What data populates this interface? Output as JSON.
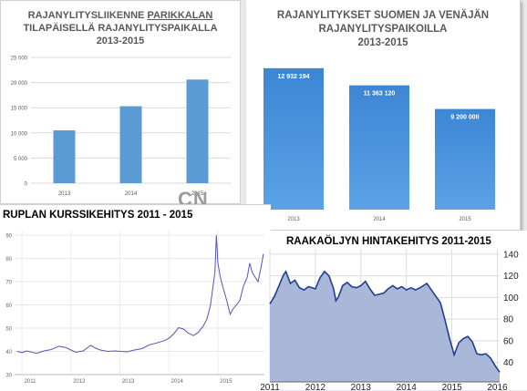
{
  "chart_data": [
    {
      "type": "bar",
      "title_line1": "RAJANYLITYSLIIKENNE",
      "title_line1_underlined": "PARIKKALAN",
      "title_line2": "TILAPÄISELLÄ RAJANYLITYSPAIKALLA",
      "title_line3": "2013-2015",
      "categories": [
        "2013",
        "2014",
        "2015"
      ],
      "values": [
        10500,
        15300,
        20600
      ],
      "yticks": [
        "0",
        "5 000",
        "10 000",
        "15 000",
        "20 000",
        "25 000"
      ],
      "ylim": [
        0,
        25000
      ],
      "bar_color": "#5b9bd5",
      "grid": true
    },
    {
      "type": "bar",
      "title_line1": "RAJANYLITYKSET SUOMEN JA VENÄJÄN",
      "title_line2": "RAJANYLITYSPAIKOILLA",
      "title_line3": "2013-2015",
      "categories": [
        "2013",
        "2014",
        "2015"
      ],
      "values": [
        12932194,
        11363120,
        9200000
      ],
      "value_labels": [
        "12 932 194",
        "11 363 120",
        "9 200 000"
      ],
      "ylim": [
        0,
        14000000
      ],
      "bar_color": "#4a8fd6",
      "grid": false
    },
    {
      "type": "line",
      "title": "RUPLAN KURSSIKEHITYS 2011 - 2015",
      "x_labels": [
        "2011",
        "2012",
        "2013",
        "2014",
        "2015"
      ],
      "yticks": [
        "30",
        "40",
        "50",
        "60",
        "70",
        "80",
        "90"
      ],
      "ylim": [
        30,
        92
      ],
      "xlim": [
        2010.85,
        2015.95
      ],
      "points": [
        [
          2010.9,
          40
        ],
        [
          2011.0,
          39.5
        ],
        [
          2011.1,
          40.2
        ],
        [
          2011.2,
          39.6
        ],
        [
          2011.3,
          39.2
        ],
        [
          2011.45,
          40.2
        ],
        [
          2011.6,
          40.8
        ],
        [
          2011.75,
          42.2
        ],
        [
          2011.9,
          41.6
        ],
        [
          2012.0,
          40.6
        ],
        [
          2012.1,
          39.6
        ],
        [
          2012.25,
          40.2
        ],
        [
          2012.4,
          42.6
        ],
        [
          2012.5,
          41.4
        ],
        [
          2012.6,
          40.6
        ],
        [
          2012.75,
          40.0
        ],
        [
          2012.9,
          40.2
        ],
        [
          2013.0,
          40.0
        ],
        [
          2013.15,
          39.8
        ],
        [
          2013.3,
          40.6
        ],
        [
          2013.45,
          41.2
        ],
        [
          2013.6,
          42.8
        ],
        [
          2013.75,
          43.6
        ],
        [
          2013.9,
          44.6
        ],
        [
          2014.0,
          45.6
        ],
        [
          2014.1,
          47.6
        ],
        [
          2014.2,
          50.2
        ],
        [
          2014.3,
          49.6
        ],
        [
          2014.4,
          47.8
        ],
        [
          2014.5,
          46.8
        ],
        [
          2014.6,
          48.2
        ],
        [
          2014.7,
          50.8
        ],
        [
          2014.78,
          54.0
        ],
        [
          2014.85,
          60.0
        ],
        [
          2014.9,
          68.0
        ],
        [
          2014.94,
          74.0
        ],
        [
          2014.97,
          90.0
        ],
        [
          2015.0,
          78.0
        ],
        [
          2015.05,
          72.0
        ],
        [
          2015.1,
          68.0
        ],
        [
          2015.18,
          62.0
        ],
        [
          2015.25,
          56.0
        ],
        [
          2015.3,
          58.0
        ],
        [
          2015.38,
          60.0
        ],
        [
          2015.45,
          62.0
        ],
        [
          2015.52,
          68.0
        ],
        [
          2015.6,
          72.0
        ],
        [
          2015.65,
          78.0
        ],
        [
          2015.7,
          74.0
        ],
        [
          2015.76,
          72.0
        ],
        [
          2015.82,
          70.0
        ],
        [
          2015.88,
          76.0
        ],
        [
          2015.93,
          82.0
        ]
      ],
      "line_color": "#5555bb",
      "grid": true
    },
    {
      "type": "area",
      "title": "RAAKAÖLJYN HINTAKEHITYS 2011-2015",
      "x_labels": [
        "2011",
        "2012",
        "2013",
        "2014",
        "2015",
        "2016"
      ],
      "x_label_values": [
        2011,
        2012,
        2013,
        2014,
        2015,
        2016
      ],
      "yticks": [
        "40",
        "60",
        "80",
        "100",
        "120",
        "140"
      ],
      "ylim": [
        22,
        145
      ],
      "xlim": [
        2011,
        2016.05
      ],
      "points": [
        [
          2011.0,
          94
        ],
        [
          2011.1,
          101
        ],
        [
          2011.2,
          111
        ],
        [
          2011.3,
          121
        ],
        [
          2011.35,
          124
        ],
        [
          2011.45,
          113
        ],
        [
          2011.55,
          116
        ],
        [
          2011.65,
          109
        ],
        [
          2011.75,
          107
        ],
        [
          2011.85,
          110
        ],
        [
          2012.0,
          108
        ],
        [
          2012.1,
          118
        ],
        [
          2012.2,
          124
        ],
        [
          2012.3,
          120
        ],
        [
          2012.4,
          108
        ],
        [
          2012.45,
          97
        ],
        [
          2012.5,
          100
        ],
        [
          2012.6,
          111
        ],
        [
          2012.7,
          114
        ],
        [
          2012.8,
          110
        ],
        [
          2012.9,
          109
        ],
        [
          2013.0,
          111
        ],
        [
          2013.1,
          115
        ],
        [
          2013.2,
          108
        ],
        [
          2013.3,
          102
        ],
        [
          2013.4,
          103
        ],
        [
          2013.5,
          104
        ],
        [
          2013.6,
          108
        ],
        [
          2013.7,
          111
        ],
        [
          2013.8,
          108
        ],
        [
          2013.9,
          110
        ],
        [
          2014.0,
          107
        ],
        [
          2014.1,
          109
        ],
        [
          2014.2,
          107
        ],
        [
          2014.3,
          109
        ],
        [
          2014.45,
          113
        ],
        [
          2014.55,
          107
        ],
        [
          2014.65,
          101
        ],
        [
          2014.75,
          95
        ],
        [
          2014.85,
          79
        ],
        [
          2014.95,
          62
        ],
        [
          2015.05,
          47
        ],
        [
          2015.15,
          58
        ],
        [
          2015.25,
          62
        ],
        [
          2015.35,
          64
        ],
        [
          2015.45,
          59
        ],
        [
          2015.55,
          48
        ],
        [
          2015.65,
          47
        ],
        [
          2015.75,
          48
        ],
        [
          2015.85,
          44
        ],
        [
          2015.95,
          37
        ],
        [
          2016.05,
          31
        ]
      ],
      "line_color": "#1f3f8f",
      "fill_color": "#a9b7d9",
      "grid": true
    }
  ],
  "watermark": "CN"
}
